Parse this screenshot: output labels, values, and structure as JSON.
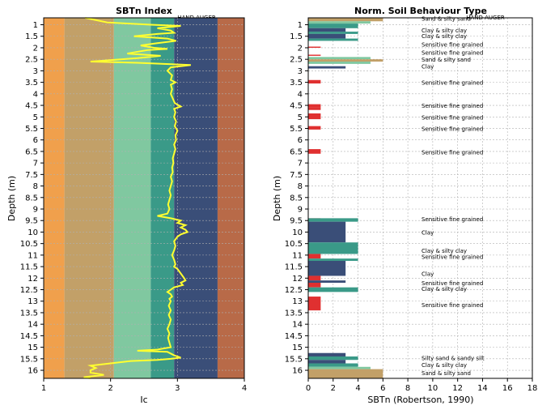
{
  "chart_data": [
    {
      "type": "line",
      "title": "SBTn Index",
      "subtitle": "HAND AUGER",
      "xlabel": "Ic",
      "ylabel": "Depth (m)",
      "xlim": [
        1,
        4
      ],
      "ylim": [
        16.35,
        0.7
      ],
      "xticks": [
        "1",
        "2",
        "3",
        "4"
      ],
      "yticks": [
        "1",
        "1.5",
        "2",
        "2.5",
        "3",
        "3.5",
        "4",
        "4.5",
        "5",
        "5.5",
        "6",
        "6.5",
        "7",
        "7.5",
        "8",
        "8.5",
        "9",
        "9.5",
        "10",
        "10.5",
        "11",
        "11.5",
        "12",
        "12.5",
        "13",
        "13.5",
        "14",
        "14.5",
        "15",
        "15.5",
        "16"
      ],
      "zones": [
        {
          "from": 1.0,
          "to": 1.31,
          "color": "#f0a04c"
        },
        {
          "from": 1.31,
          "to": 2.05,
          "color": "#c2a068"
        },
        {
          "from": 2.05,
          "to": 2.6,
          "color": "#80c8a0"
        },
        {
          "from": 2.6,
          "to": 2.95,
          "color": "#3a9a88"
        },
        {
          "from": 2.95,
          "to": 3.6,
          "color": "#3a4e78"
        },
        {
          "from": 3.6,
          "to": 4.0,
          "color": "#b86a48"
        }
      ],
      "series": [
        {
          "name": "Ic",
          "color": "#ffff30",
          "points": [
            [
              1.62,
              0.7
            ],
            [
              1.95,
              0.9
            ],
            [
              2.6,
              1.0
            ],
            [
              3.05,
              1.05
            ],
            [
              2.7,
              1.15
            ],
            [
              2.9,
              1.25
            ],
            [
              2.95,
              1.35
            ],
            [
              2.7,
              1.4
            ],
            [
              2.35,
              1.5
            ],
            [
              2.85,
              1.6
            ],
            [
              2.98,
              1.7
            ],
            [
              2.7,
              1.8
            ],
            [
              2.45,
              1.9
            ],
            [
              2.65,
              2.0
            ],
            [
              2.85,
              2.05
            ],
            [
              2.55,
              2.1
            ],
            [
              2.25,
              2.25
            ],
            [
              2.75,
              2.35
            ],
            [
              2.4,
              2.45
            ],
            [
              1.7,
              2.6
            ],
            [
              2.4,
              2.65
            ],
            [
              2.8,
              2.7
            ],
            [
              3.2,
              2.75
            ],
            [
              2.9,
              2.85
            ],
            [
              2.85,
              3.0
            ],
            [
              2.92,
              3.2
            ],
            [
              2.9,
              3.4
            ],
            [
              2.97,
              3.5
            ],
            [
              2.9,
              3.6
            ],
            [
              2.92,
              3.8
            ],
            [
              2.9,
              4.0
            ],
            [
              2.93,
              4.2
            ],
            [
              2.96,
              4.4
            ],
            [
              3.05,
              4.55
            ],
            [
              2.95,
              4.65
            ],
            [
              2.97,
              4.8
            ],
            [
              2.95,
              5.0
            ],
            [
              2.98,
              5.2
            ],
            [
              2.96,
              5.4
            ],
            [
              3.0,
              5.6
            ],
            [
              2.97,
              5.8
            ],
            [
              2.98,
              6.0
            ],
            [
              2.95,
              6.2
            ],
            [
              2.97,
              6.4
            ],
            [
              2.95,
              6.6
            ],
            [
              2.93,
              6.8
            ],
            [
              2.94,
              7.0
            ],
            [
              2.92,
              7.2
            ],
            [
              2.93,
              7.4
            ],
            [
              2.9,
              7.6
            ],
            [
              2.92,
              7.8
            ],
            [
              2.9,
              8.0
            ],
            [
              2.88,
              8.2
            ],
            [
              2.9,
              8.4
            ],
            [
              2.88,
              8.6
            ],
            [
              2.86,
              8.8
            ],
            [
              2.88,
              9.0
            ],
            [
              2.85,
              9.2
            ],
            [
              2.7,
              9.3
            ],
            [
              2.9,
              9.4
            ],
            [
              3.05,
              9.5
            ],
            [
              3.0,
              9.6
            ],
            [
              3.12,
              9.7
            ],
            [
              3.05,
              9.8
            ],
            [
              3.12,
              9.9
            ],
            [
              3.15,
              10.0
            ],
            [
              3.05,
              10.1
            ],
            [
              3.0,
              10.2
            ],
            [
              2.95,
              10.4
            ],
            [
              2.97,
              10.6
            ],
            [
              2.95,
              10.8
            ],
            [
              2.92,
              11.0
            ],
            [
              2.95,
              11.2
            ],
            [
              2.97,
              11.4
            ],
            [
              2.95,
              11.5
            ],
            [
              3.0,
              11.6
            ],
            [
              3.05,
              11.8
            ],
            [
              3.1,
              12.0
            ],
            [
              3.12,
              12.1
            ],
            [
              3.05,
              12.2
            ],
            [
              3.08,
              12.3
            ],
            [
              2.95,
              12.4
            ],
            [
              2.9,
              12.5
            ],
            [
              2.85,
              12.6
            ],
            [
              2.9,
              12.7
            ],
            [
              2.92,
              12.8
            ],
            [
              2.88,
              12.9
            ],
            [
              2.9,
              13.0
            ],
            [
              2.87,
              13.2
            ],
            [
              2.9,
              13.4
            ],
            [
              2.87,
              13.6
            ],
            [
              2.9,
              13.8
            ],
            [
              2.88,
              14.0
            ],
            [
              2.85,
              14.2
            ],
            [
              2.88,
              14.4
            ],
            [
              2.86,
              14.6
            ],
            [
              2.88,
              14.8
            ],
            [
              2.9,
              15.0
            ],
            [
              2.7,
              15.1
            ],
            [
              2.4,
              15.15
            ],
            [
              2.85,
              15.2
            ],
            [
              2.95,
              15.35
            ],
            [
              3.05,
              15.45
            ],
            [
              2.9,
              15.5
            ],
            [
              2.7,
              15.55
            ],
            [
              2.3,
              15.6
            ],
            [
              2.0,
              15.7
            ],
            [
              1.7,
              15.8
            ],
            [
              1.78,
              15.9
            ],
            [
              1.7,
              16.0
            ],
            [
              1.7,
              16.1
            ],
            [
              1.8,
              16.15
            ],
            [
              1.9,
              16.2
            ],
            [
              1.6,
              16.3
            ],
            [
              1.7,
              16.35
            ]
          ]
        }
      ]
    },
    {
      "type": "bar",
      "title": "Norm. Soil Behaviour Type",
      "subtitle": "HAND AUGER",
      "xlabel": "SBTn (Robertson, 1990)",
      "ylabel": "Depth (m)",
      "xlim": [
        0,
        18
      ],
      "ylim": [
        16.35,
        0.7
      ],
      "xticks": [
        "0",
        "2",
        "4",
        "6",
        "8",
        "10",
        "12",
        "14",
        "16",
        "18"
      ],
      "yticks": [
        "1",
        "1.5",
        "2",
        "2.5",
        "3",
        "3.5",
        "4",
        "4.5",
        "5",
        "5.5",
        "6",
        "6.5",
        "7",
        "7.5",
        "8",
        "8.5",
        "9",
        "9.5",
        "10",
        "10.5",
        "11",
        "11.5",
        "12",
        "12.5",
        "13",
        "13.5",
        "14",
        "14.5",
        "15",
        "15.5",
        "16"
      ],
      "sbt_colors": {
        "1": "#e03030",
        "2": "#c07850",
        "3": "#3a4e78",
        "4": "#3a9a88",
        "5": "#80c8a0",
        "6": "#c2a068",
        "7": "#f0a04c"
      },
      "bars": [
        {
          "top": 0.7,
          "bottom": 0.85,
          "value": 6
        },
        {
          "top": 0.85,
          "bottom": 0.95,
          "value": 5
        },
        {
          "top": 0.95,
          "bottom": 1.15,
          "value": 4
        },
        {
          "top": 1.15,
          "bottom": 1.3,
          "value": 3
        },
        {
          "top": 1.3,
          "bottom": 1.4,
          "value": 4
        },
        {
          "top": 1.4,
          "bottom": 1.6,
          "value": 3
        },
        {
          "top": 1.6,
          "bottom": 1.7,
          "value": 4
        },
        {
          "top": 1.95,
          "bottom": 2.0,
          "value": 1
        },
        {
          "top": 2.3,
          "bottom": 2.35,
          "value": 1
        },
        {
          "top": 2.4,
          "bottom": 2.5,
          "value": 5
        },
        {
          "top": 2.5,
          "bottom": 2.6,
          "value": 6
        },
        {
          "top": 2.6,
          "bottom": 2.7,
          "value": 5
        },
        {
          "top": 2.8,
          "bottom": 2.9,
          "value": 3
        },
        {
          "top": 3.4,
          "bottom": 3.55,
          "value": 1
        },
        {
          "top": 4.45,
          "bottom": 4.6,
          "value": 1
        },
        {
          "top": 4.6,
          "bottom": 4.7,
          "value": 1
        },
        {
          "top": 4.85,
          "bottom": 5.1,
          "value": 1
        },
        {
          "top": 5.4,
          "bottom": 5.55,
          "value": 1
        },
        {
          "top": 6.4,
          "bottom": 6.6,
          "value": 1
        },
        {
          "top": 9.4,
          "bottom": 9.5,
          "value": 1
        },
        {
          "top": 9.4,
          "bottom": 9.55,
          "value": 4
        },
        {
          "top": 9.55,
          "bottom": 10.45,
          "value": 3
        },
        {
          "top": 10.45,
          "bottom": 10.95,
          "value": 4
        },
        {
          "top": 10.95,
          "bottom": 11.15,
          "value": 1
        },
        {
          "top": 11.15,
          "bottom": 11.25,
          "value": 4
        },
        {
          "top": 11.25,
          "bottom": 11.9,
          "value": 3
        },
        {
          "top": 11.9,
          "bottom": 12.1,
          "value": 1
        },
        {
          "top": 12.1,
          "bottom": 12.2,
          "value": 3
        },
        {
          "top": 12.2,
          "bottom": 12.4,
          "value": 1
        },
        {
          "top": 12.4,
          "bottom": 12.6,
          "value": 4
        },
        {
          "top": 12.8,
          "bottom": 13.4,
          "value": 1
        },
        {
          "top": 15.25,
          "bottom": 15.4,
          "value": 3
        },
        {
          "top": 15.4,
          "bottom": 15.55,
          "value": 4
        },
        {
          "top": 15.55,
          "bottom": 15.7,
          "value": 3
        },
        {
          "top": 15.7,
          "bottom": 15.85,
          "value": 4
        },
        {
          "top": 15.85,
          "bottom": 15.95,
          "value": 5
        },
        {
          "top": 15.95,
          "bottom": 16.35,
          "value": 6
        }
      ],
      "annotations": [
        {
          "depth": 0.72,
          "text": "Sand & silty sand"
        },
        {
          "depth": 1.22,
          "text": "Clay & silty clay"
        },
        {
          "depth": 1.47,
          "text": "Clay & silty clay"
        },
        {
          "depth": 1.85,
          "text": "Sensitive fine grained"
        },
        {
          "depth": 2.2,
          "text": "Sensitive fine grained"
        },
        {
          "depth": 2.5,
          "text": "Sand & silty sand"
        },
        {
          "depth": 2.8,
          "text": "Clay"
        },
        {
          "depth": 3.5,
          "text": "Sensitive fine grained"
        },
        {
          "depth": 4.5,
          "text": "Sensitive fine grained"
        },
        {
          "depth": 5.0,
          "text": "Sensitive fine grained"
        },
        {
          "depth": 5.5,
          "text": "Sensitive fine grained"
        },
        {
          "depth": 6.52,
          "text": "Sensitive fine grained"
        },
        {
          "depth": 9.42,
          "text": "Sensitive fine grained"
        },
        {
          "depth": 10.0,
          "text": "Clay"
        },
        {
          "depth": 10.8,
          "text": "Clay & silty clay"
        },
        {
          "depth": 11.05,
          "text": "Sensitive fine grained"
        },
        {
          "depth": 11.8,
          "text": "Clay"
        },
        {
          "depth": 12.2,
          "text": "Sensitive fine grained"
        },
        {
          "depth": 12.45,
          "text": "Clay & silty clay"
        },
        {
          "depth": 13.15,
          "text": "Sensitive fine grained"
        },
        {
          "depth": 15.45,
          "text": "Silty sand & sandy silt"
        },
        {
          "depth": 15.75,
          "text": "Clay & silty clay"
        },
        {
          "depth": 16.1,
          "text": "Sand & silty sand"
        }
      ]
    }
  ]
}
